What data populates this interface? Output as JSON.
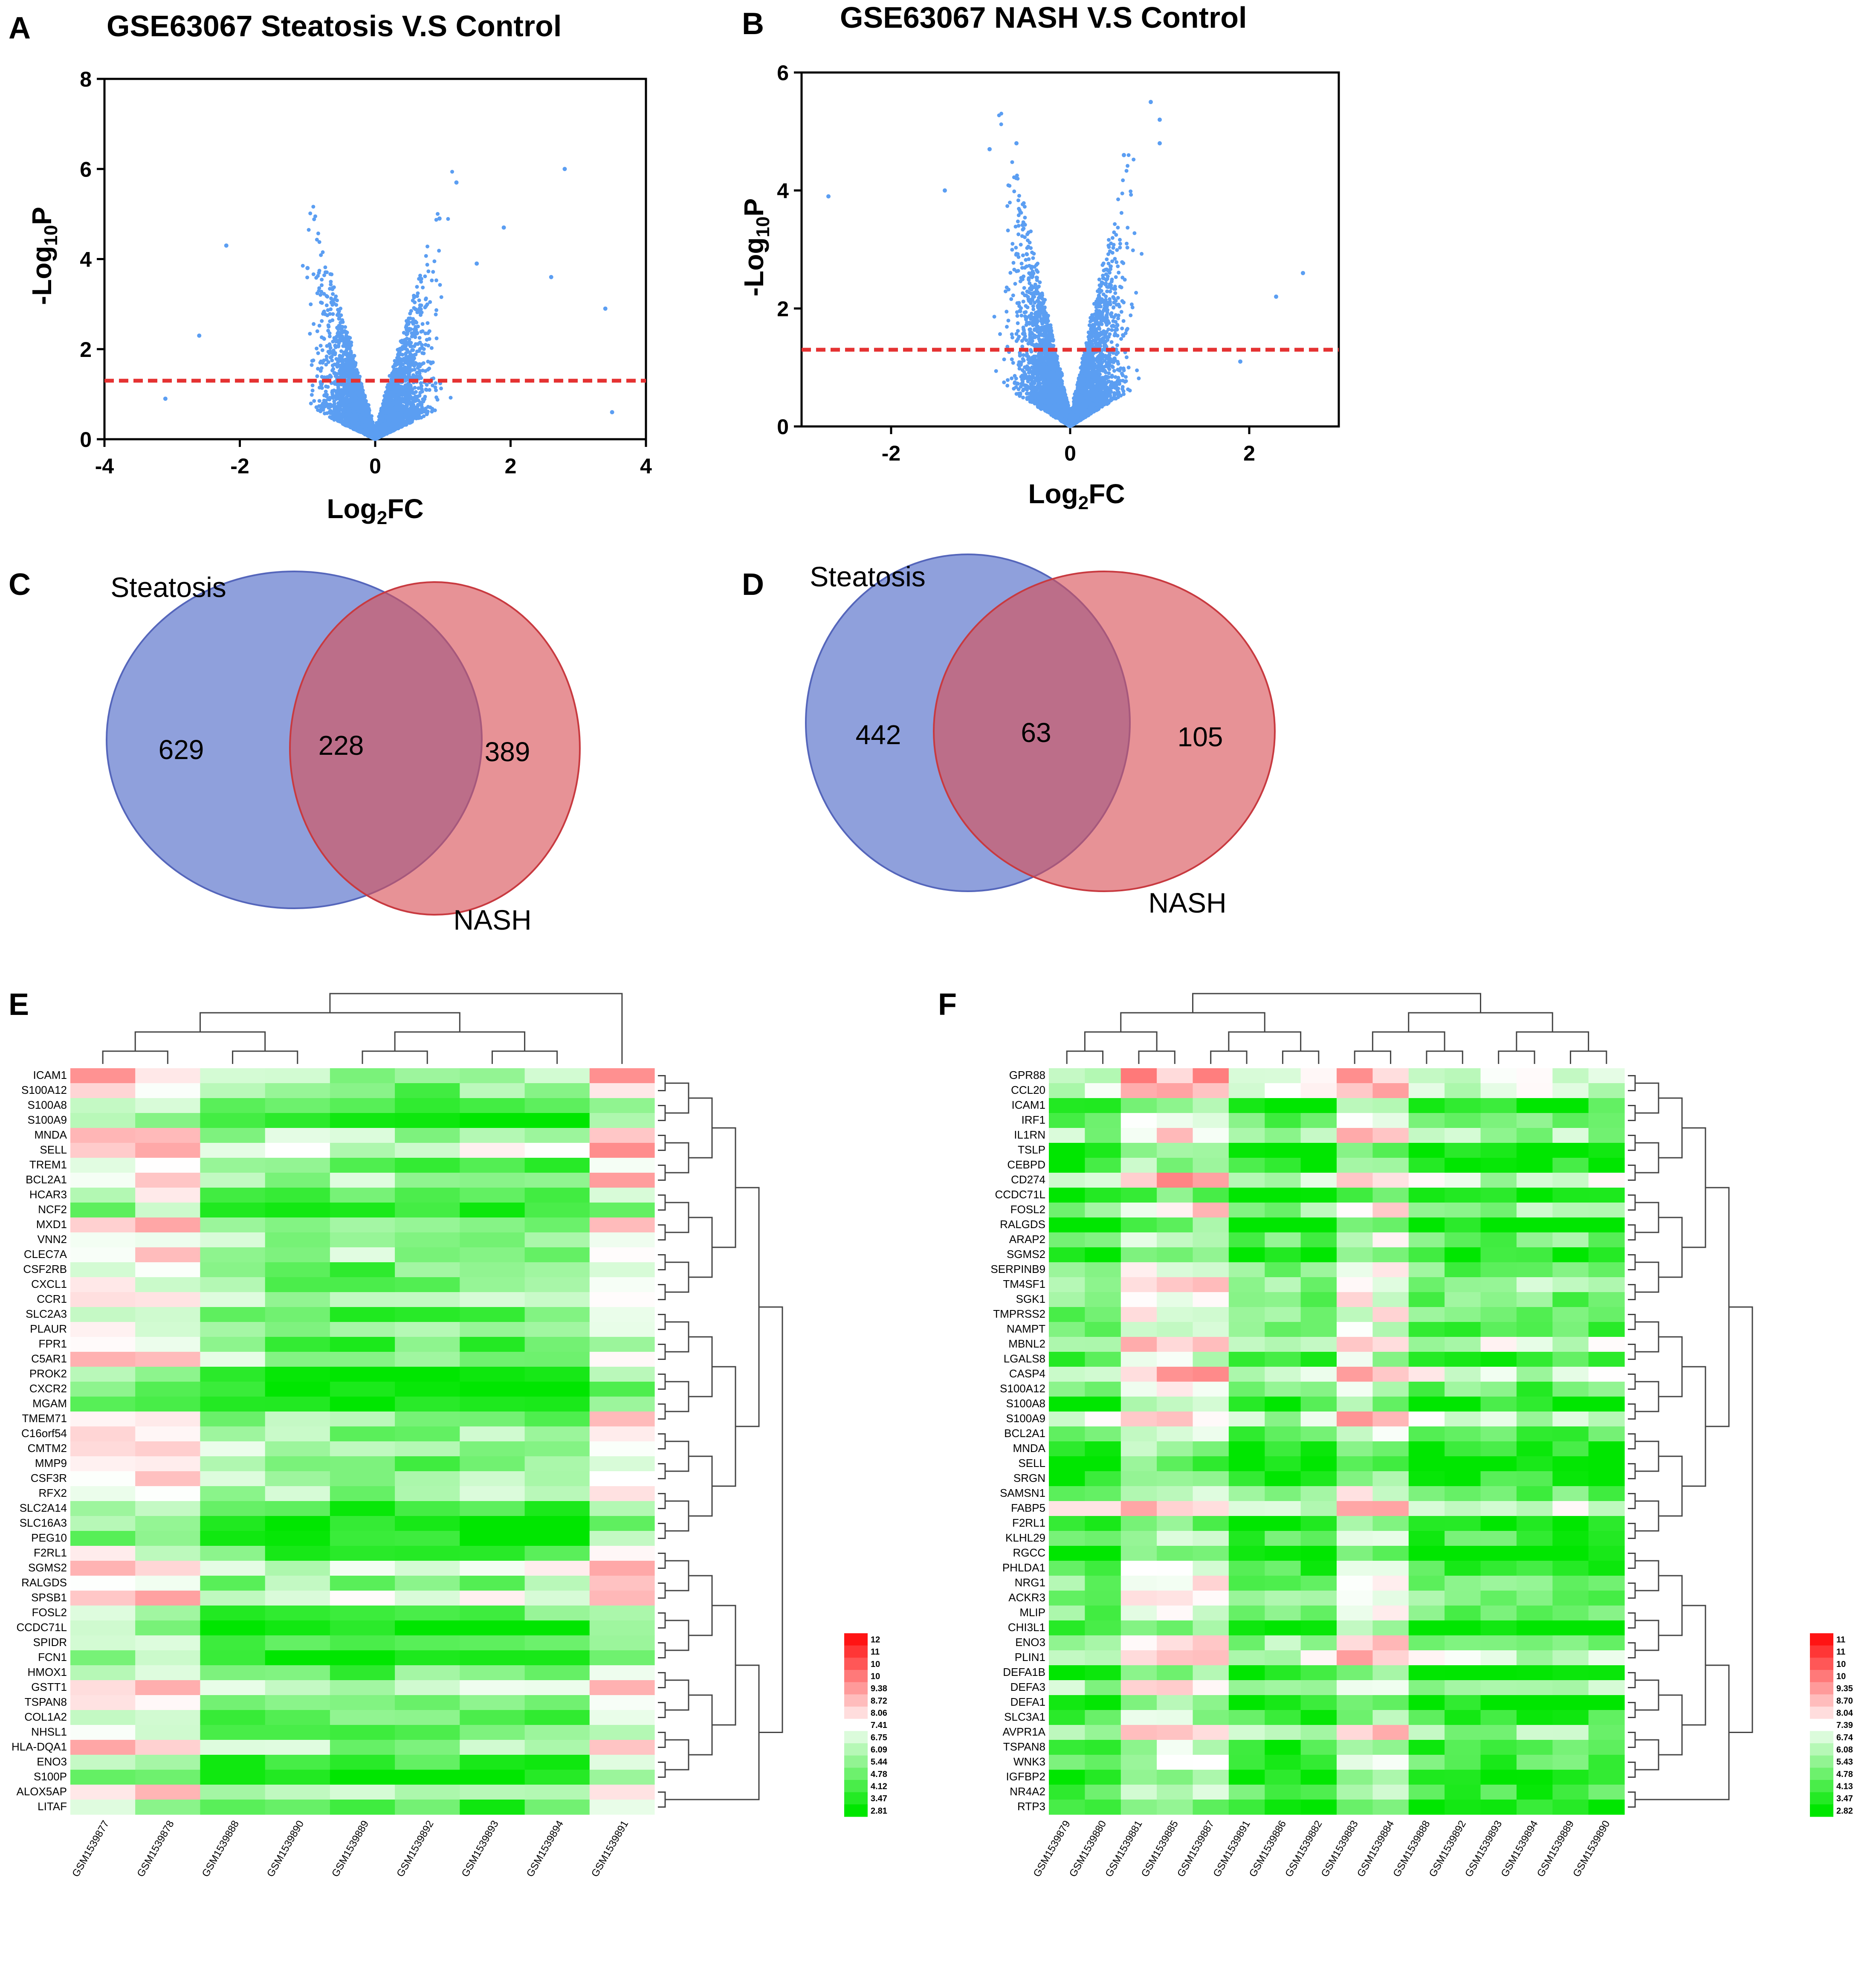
{
  "panels": {
    "A": {
      "label": "A",
      "title": "GSE63067 Steatosis V.S Control"
    },
    "B": {
      "label": "B",
      "title": "GSE63067 NASH V.S Control"
    },
    "C": {
      "label": "C"
    },
    "D": {
      "label": "D"
    },
    "E": {
      "label": "E"
    },
    "F": {
      "label": "F"
    }
  },
  "volcano_axes": {
    "ylabel_main": "-Log",
    "ylabel_sub": "10",
    "ylabel_end": "P",
    "xlabel_main": "Log",
    "xlabel_sub": "2",
    "xlabel_end": "FC"
  },
  "chart_data": [
    {
      "type": "scatter",
      "id": "volcano-A",
      "title": "GSE63067 Steatosis V.S Control",
      "xlabel": "Log2FC",
      "ylabel": "-Log10P",
      "xlim": [
        -4,
        4
      ],
      "ylim": [
        0,
        8
      ],
      "xticks": [
        -4,
        -2,
        0,
        2,
        4
      ],
      "yticks": [
        0,
        2,
        4,
        6,
        8
      ],
      "threshold_y": 1.3,
      "color": "#5b9ef2",
      "threshold_color": "#e53232",
      "highlight_points": [
        [
          2.8,
          6.0
        ],
        [
          1.2,
          5.7
        ],
        [
          1.9,
          4.7
        ],
        [
          -2.2,
          4.3
        ],
        [
          0.95,
          4.9
        ],
        [
          3.4,
          2.9
        ],
        [
          -2.6,
          2.3
        ],
        [
          -3.1,
          0.9
        ],
        [
          3.5,
          0.6
        ],
        [
          2.6,
          3.6
        ],
        [
          -1.0,
          3.8
        ],
        [
          1.5,
          3.9
        ]
      ],
      "point_count_estimate": 4200
    },
    {
      "type": "scatter",
      "id": "volcano-B",
      "title": "GSE63067 NASH V.S Control",
      "xlabel": "Log2FC",
      "ylabel": "-Log10P",
      "xlim": [
        -3,
        3
      ],
      "ylim": [
        0,
        6
      ],
      "xticks": [
        -2,
        0,
        2
      ],
      "yticks": [
        0,
        2,
        4,
        6
      ],
      "threshold_y": 1.3,
      "color": "#5b9ef2",
      "threshold_color": "#e53232",
      "highlight_points": [
        [
          0.9,
          5.5
        ],
        [
          1.0,
          5.2
        ],
        [
          -0.6,
          4.8
        ],
        [
          -2.7,
          3.9
        ],
        [
          -1.4,
          4.0
        ],
        [
          2.6,
          2.6
        ],
        [
          2.3,
          2.2
        ],
        [
          -0.9,
          4.7
        ],
        [
          0.6,
          4.6
        ],
        [
          1.9,
          1.1
        ],
        [
          1.0,
          4.8
        ]
      ],
      "point_count_estimate": 4800
    },
    {
      "type": "venn",
      "id": "venn-C",
      "sets": [
        "Steatosis",
        "NASH"
      ],
      "values": {
        "Steatosis_only": 629,
        "intersection": 228,
        "NASH_only": 389
      }
    },
    {
      "type": "venn",
      "id": "venn-D",
      "sets": [
        "Steatosis",
        "NASH"
      ],
      "values": {
        "Steatosis_only": 442,
        "intersection": 63,
        "NASH_only": 105
      }
    },
    {
      "type": "heatmap",
      "id": "heatmap-E",
      "samples": [
        "GSM1539877",
        "GSM1539878",
        "GSM1539888",
        "GSM1539890",
        "GSM1539889",
        "GSM1539892",
        "GSM1539893",
        "GSM1539894",
        "GSM1539891"
      ],
      "genes": [
        "ICAM1",
        "S100A12",
        "S100A8",
        "S100A9",
        "MNDA",
        "SELL",
        "TREM1",
        "BCL2A1",
        "HCAR3",
        "NCF2",
        "MXD1",
        "VNN2",
        "CLEC7A",
        "CSF2RB",
        "CXCL1",
        "CCR1",
        "SLC2A3",
        "PLAUR",
        "FPR1",
        "C5AR1",
        "PROK2",
        "CXCR2",
        "MGAM",
        "TMEM71",
        "C16orf54",
        "CMTM2",
        "MMP9",
        "CSF3R",
        "RFX2",
        "SLC2A14",
        "SLC16A3",
        "PEG10",
        "F2RL1",
        "SGMS2",
        "RALGDS",
        "SPSB1",
        "FOSL2",
        "CCDC71L",
        "SPIDR",
        "FCN1",
        "HMOX1",
        "GSTT1",
        "TSPAN8",
        "COL1A2",
        "NHSL1",
        "HLA-DQA1",
        "ENO3",
        "S100P",
        "ALOX5AP",
        "LITAF"
      ],
      "color_scale": [
        "12",
        "11",
        "10",
        "10",
        "9.38",
        "8.72",
        "8.06",
        "7.41",
        "6.75",
        "6.09",
        "5.44",
        "4.78",
        "4.12",
        "3.47",
        "2.81"
      ]
    },
    {
      "type": "heatmap",
      "id": "heatmap-F",
      "samples": [
        "GSM1539879",
        "GSM1539880",
        "GSM1539881",
        "GSM1539885",
        "GSM1539887",
        "GSM1539891",
        "GSM1539886",
        "GSM1539882",
        "GSM1539883",
        "GSM1539884",
        "GSM1539888",
        "GSM1539892",
        "GSM1539893",
        "GSM1539894",
        "GSM1539889",
        "GSM1539890"
      ],
      "genes": [
        "GPR88",
        "CCL20",
        "ICAM1",
        "IRF1",
        "IL1RN",
        "TSLP",
        "CEBPD",
        "CD274",
        "CCDC71L",
        "FOSL2",
        "RALGDS",
        "ARAP2",
        "SGMS2",
        "SERPINB9",
        "TM4SF1",
        "SGK1",
        "TMPRSS2",
        "NAMPT",
        "MBNL2",
        "LGALS8",
        "CASP4",
        "S100A12",
        "S100A8",
        "S100A9",
        "BCL2A1",
        "MNDA",
        "SELL",
        "SRGN",
        "SAMSN1",
        "FABP5",
        "F2RL1",
        "KLHL29",
        "RGCC",
        "PHLDA1",
        "NRG1",
        "ACKR3",
        "MLIP",
        "CHI3L1",
        "ENO3",
        "PLIN1",
        "DEFA1B",
        "DEFA3",
        "DEFA1",
        "SLC3A1",
        "AVPR1A",
        "TSPAN8",
        "WNK3",
        "IGFBP2",
        "NR4A2",
        "RTP3"
      ],
      "color_scale": [
        "11",
        "11",
        "10",
        "10",
        "9.35",
        "8.70",
        "8.04",
        "7.39",
        "6.74",
        "6.08",
        "5.43",
        "4.78",
        "4.13",
        "3.47",
        "2.82"
      ]
    }
  ]
}
